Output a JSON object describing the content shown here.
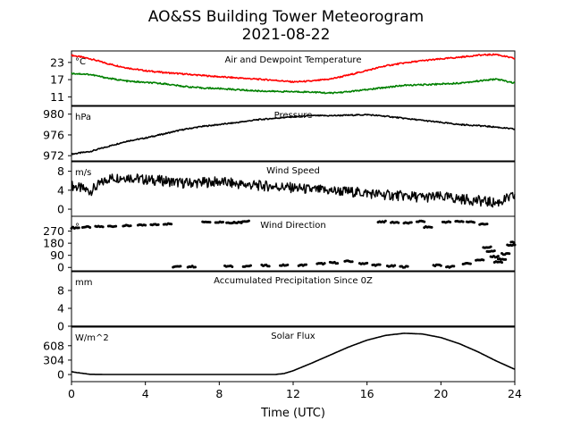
{
  "title": "AO&SS Building Tower Meteorogram",
  "subtitle": "2021-08-22",
  "xlabel": "Time (UTC)",
  "chart_data": [
    {
      "type": "line",
      "title": "Air and Dewpoint Temperature",
      "unit": "°C",
      "x_range": [
        0,
        24
      ],
      "ylim": [
        8,
        27
      ],
      "yticks": [
        11,
        17,
        23
      ],
      "x": [
        0,
        1,
        2,
        3,
        4,
        5,
        6,
        7,
        8,
        9,
        10,
        11,
        12,
        13,
        14,
        15,
        16,
        17,
        18,
        19,
        20,
        21,
        22,
        23,
        24
      ],
      "series": [
        {
          "color": "#ff0000",
          "values": [
            25.5,
            24.3,
            22.5,
            21.1,
            20.1,
            19.5,
            19.0,
            18.5,
            18.0,
            17.6,
            17.2,
            16.8,
            16.2,
            16.5,
            17.2,
            18.6,
            20.2,
            21.8,
            22.8,
            23.6,
            24.2,
            24.8,
            25.5,
            25.8,
            24.3
          ]
        },
        {
          "color": "#008000",
          "values": [
            19.2,
            18.8,
            17.5,
            16.5,
            16.0,
            15.6,
            14.7,
            14.1,
            13.9,
            13.5,
            13.1,
            12.9,
            12.8,
            12.7,
            12.3,
            12.8,
            13.5,
            14.3,
            15.0,
            15.2,
            15.5,
            15.8,
            16.5,
            17.2,
            15.8
          ]
        }
      ]
    },
    {
      "type": "line",
      "title": "Pressure",
      "unit": "hPa",
      "x_range": [
        0,
        24
      ],
      "ylim": [
        971,
        981.5
      ],
      "yticks": [
        972,
        976,
        980
      ],
      "x": [
        0,
        1,
        2,
        3,
        4,
        5,
        6,
        7,
        8,
        9,
        10,
        11,
        12,
        13,
        14,
        15,
        16,
        17,
        18,
        19,
        20,
        21,
        22,
        23,
        24
      ],
      "series": [
        {
          "color": "#000000",
          "values": [
            972.3,
            972.8,
            973.8,
            974.8,
            975.4,
            976.2,
            977.0,
            977.6,
            978.0,
            978.4,
            978.9,
            979.2,
            979.5,
            979.7,
            979.7,
            979.8,
            979.9,
            979.6,
            979.2,
            978.8,
            978.4,
            978.0,
            977.8,
            977.5,
            977.1
          ]
        }
      ]
    },
    {
      "type": "line",
      "title": "Wind Speed",
      "unit": "m/s",
      "x_range": [
        0,
        24
      ],
      "ylim": [
        -1.5,
        10
      ],
      "yticks": [
        0,
        4,
        8
      ],
      "x": [
        0,
        1,
        2,
        3,
        4,
        5,
        6,
        7,
        8,
        9,
        10,
        11,
        12,
        13,
        14,
        15,
        16,
        17,
        18,
        19,
        20,
        21,
        22,
        23,
        24
      ],
      "series": [
        {
          "color": "#000000",
          "values": [
            5.0,
            3.8,
            6.5,
            6.8,
            6.2,
            6.0,
            5.5,
            5.6,
            5.8,
            5.3,
            5.0,
            4.8,
            4.5,
            4.1,
            3.9,
            3.7,
            3.4,
            3.0,
            2.8,
            2.5,
            2.6,
            2.2,
            1.8,
            1.3,
            2.8
          ]
        }
      ]
    },
    {
      "type": "scatter",
      "title": "Wind Direction",
      "unit": "°",
      "x_range": [
        0,
        24
      ],
      "ylim": [
        -25,
        380
      ],
      "yticks": [
        0,
        90,
        180,
        270
      ],
      "series": [
        {
          "color": "#000000",
          "points": [
            [
              0.2,
              295
            ],
            [
              0.8,
              300
            ],
            [
              1.5,
              303
            ],
            [
              2.2,
              306
            ],
            [
              3.0,
              310
            ],
            [
              3.8,
              313
            ],
            [
              4.5,
              318
            ],
            [
              5.2,
              323
            ],
            [
              7.3,
              340
            ],
            [
              8.0,
              338
            ],
            [
              8.6,
              333
            ],
            [
              9.0,
              335
            ],
            [
              9.4,
              342
            ],
            [
              5.7,
              5
            ],
            [
              6.5,
              6
            ],
            [
              8.5,
              8
            ],
            [
              9.5,
              10
            ],
            [
              10.5,
              14
            ],
            [
              11.5,
              16
            ],
            [
              12.5,
              17
            ],
            [
              13.5,
              28
            ],
            [
              14.2,
              35
            ],
            [
              15.0,
              45
            ],
            [
              15.8,
              30
            ],
            [
              16.5,
              18
            ],
            [
              17.3,
              10
            ],
            [
              18.0,
              5
            ],
            [
              16.8,
              340
            ],
            [
              17.5,
              335
            ],
            [
              18.2,
              330
            ],
            [
              18.9,
              342
            ],
            [
              19.3,
              300
            ],
            [
              20.3,
              338
            ],
            [
              21.0,
              342
            ],
            [
              21.6,
              338
            ],
            [
              22.3,
              320
            ],
            [
              19.8,
              15
            ],
            [
              20.5,
              5
            ],
            [
              21.4,
              30
            ],
            [
              22.1,
              55
            ],
            [
              22.5,
              150
            ],
            [
              22.7,
              120
            ],
            [
              22.9,
              80
            ],
            [
              23.1,
              40
            ],
            [
              23.3,
              60
            ],
            [
              23.5,
              100
            ],
            [
              23.8,
              165
            ],
            [
              24.0,
              185
            ]
          ]
        }
      ]
    },
    {
      "type": "line",
      "title": "Accumulated Precipitation Since 0Z",
      "unit": "mm",
      "x_range": [
        0,
        24
      ],
      "ylim": [
        0,
        12.2
      ],
      "yticks": [
        0,
        4,
        8
      ],
      "x": [
        0,
        24
      ],
      "series": [
        {
          "color": "#000000",
          "values": [
            0,
            0
          ]
        }
      ]
    },
    {
      "type": "line",
      "title": "Solar Flux",
      "unit": "W/m^2",
      "x_range": [
        0,
        24
      ],
      "ylim": [
        -150,
        1000
      ],
      "yticks": [
        0,
        304,
        608
      ],
      "x": [
        0,
        0.3,
        1,
        2,
        4,
        6,
        8,
        10,
        11,
        11.5,
        12,
        13,
        14,
        15,
        16,
        17,
        18,
        19,
        20,
        21,
        22,
        23,
        24
      ],
      "series": [
        {
          "color": "#000000",
          "values": [
            60,
            40,
            5,
            0,
            0,
            0,
            0,
            0,
            0,
            20,
            80,
            240,
            410,
            580,
            725,
            825,
            870,
            855,
            780,
            650,
            480,
            285,
            110
          ]
        }
      ]
    }
  ],
  "xaxis": {
    "ticks": [
      0,
      4,
      8,
      12,
      16,
      20,
      24
    ]
  }
}
